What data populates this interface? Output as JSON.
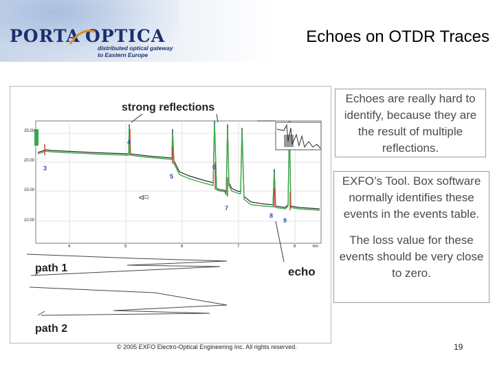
{
  "header": {
    "logo_word_1": "PORTA",
    "logo_word_2": "OPTICA",
    "logo_tagline": "distributed optical gateway to Eastern Europe",
    "title": "Echoes on OTDR Traces"
  },
  "figure": {
    "strong_reflections_label": "strong reflections",
    "path1_label": "path 1",
    "path2_label": "path 2",
    "echo_label": "echo",
    "event_numbers": [
      "3",
      "4",
      "5",
      "6",
      "7",
      "8",
      "9"
    ],
    "y_ticks": [
      "25.00",
      "20.00",
      "15.00",
      "10.00"
    ],
    "x_ticks": [
      "4",
      "5",
      "6",
      "7",
      "8"
    ],
    "x_unit": "km",
    "colors": {
      "trace_green": "#3aa84a",
      "trace_dark": "#2b2b2b",
      "marker_red": "#d23a3a",
      "event_blue": "#2a4fa8"
    }
  },
  "text_boxes": {
    "box1": "Echoes are really hard to identify, because they are the result of multiple reflections.",
    "box2_p1": "EXFO’s Tool. Box software normally identifies these events in the events table.",
    "box2_p2": "The loss value for these events should be very close to zero."
  },
  "footer": {
    "copyright": "© 2005 EXFO Electro-Optical Engineering Inc. All rights reserved.",
    "page_number": "19"
  }
}
